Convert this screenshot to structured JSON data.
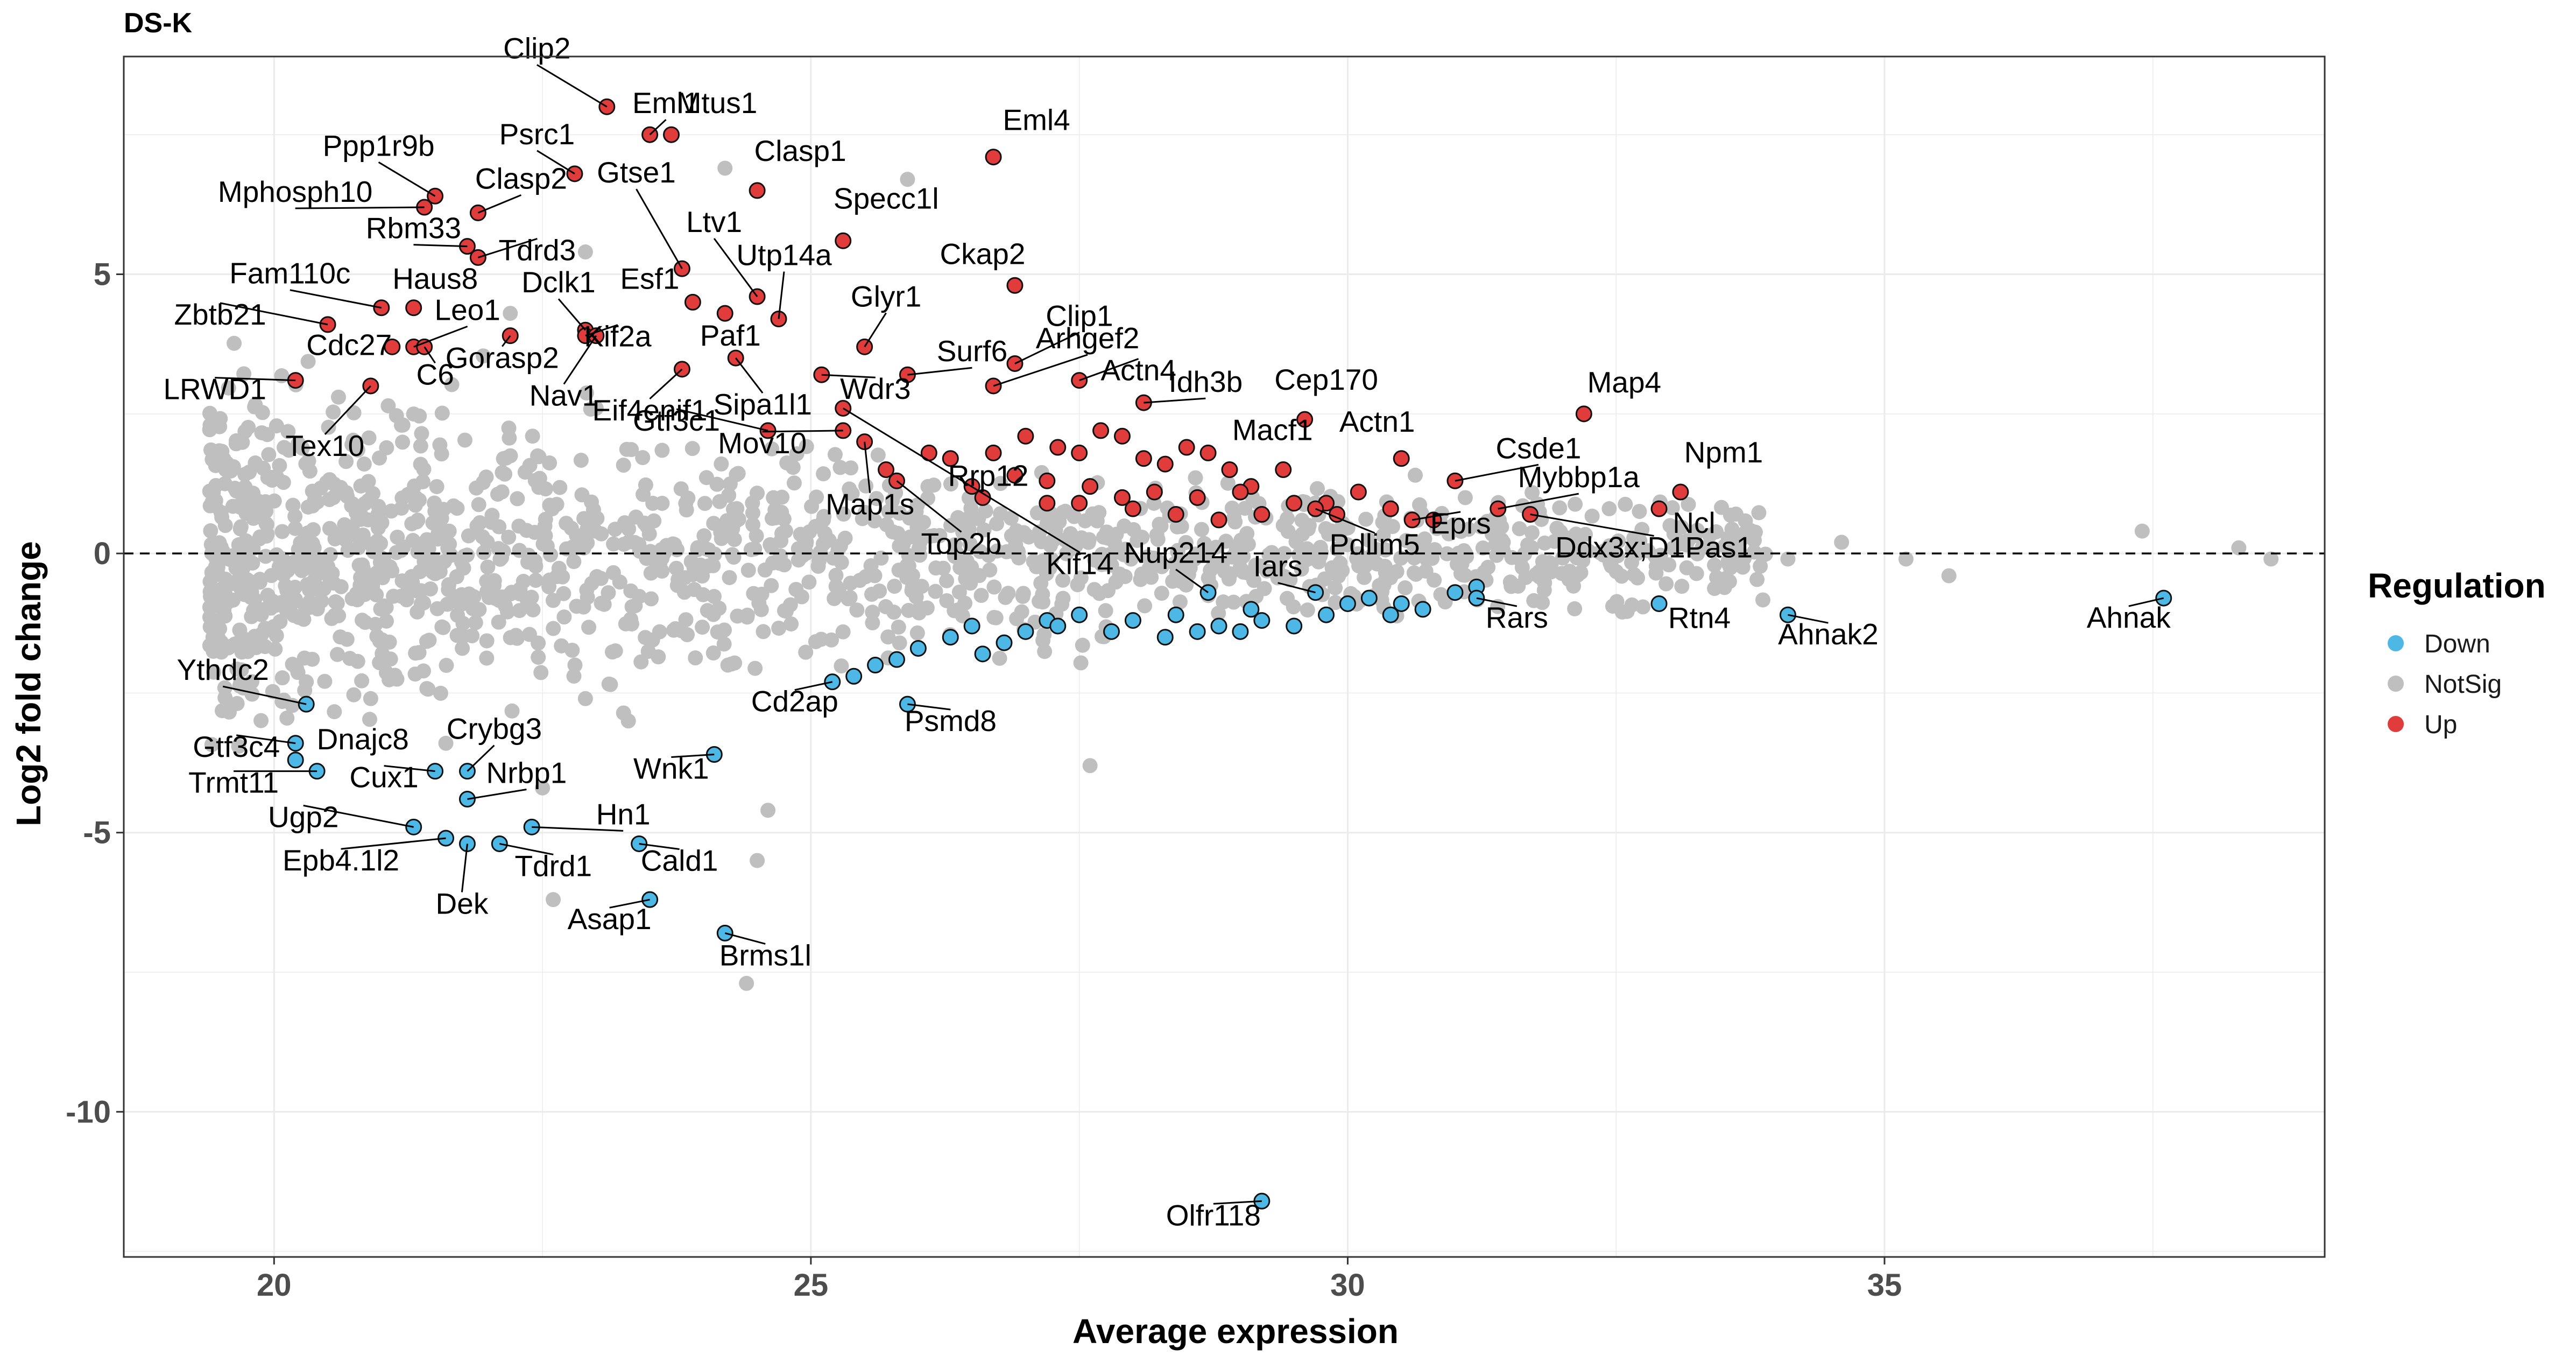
{
  "chart_data": {
    "type": "scatter",
    "title": "DS-K",
    "xlabel": "Average expression",
    "ylabel": "Log2 fold change",
    "xlim": [
      18.6,
      39.1
    ],
    "ylim": [
      -12.6,
      8.9
    ],
    "xticks": [
      20,
      25,
      30,
      35
    ],
    "yticks": [
      -10,
      -5,
      0,
      5
    ],
    "grid": true,
    "reference_line": {
      "y": 0,
      "style": "dashed"
    },
    "legend": {
      "title": "Regulation",
      "placement": "right",
      "entries": [
        {
          "label": "Down",
          "color": "#4db8e6"
        },
        {
          "label": "NotSig",
          "color": "#bfbfbf"
        },
        {
          "label": "Up",
          "color": "#e03c3c"
        }
      ]
    },
    "colors": {
      "Down": "#4db8e6",
      "NotSig": "#bfbfbf",
      "Up": "#e03c3c"
    },
    "labeled_points": [
      {
        "gene": "Clip2",
        "x": 23.1,
        "y": 8.0,
        "reg": "Up"
      },
      {
        "gene": "Eml1",
        "x": 23.5,
        "y": 7.5,
        "reg": "Up"
      },
      {
        "gene": "Mtus1",
        "x": 23.7,
        "y": 7.5,
        "reg": "Up"
      },
      {
        "gene": "Eml4",
        "x": 26.7,
        "y": 7.1,
        "reg": "Up"
      },
      {
        "gene": "Psrc1",
        "x": 22.8,
        "y": 6.8,
        "reg": "Up"
      },
      {
        "gene": "Ppp1r9b",
        "x": 21.5,
        "y": 6.4,
        "reg": "Up"
      },
      {
        "gene": "Clasp1",
        "x": 24.5,
        "y": 6.5,
        "reg": "Up"
      },
      {
        "gene": "Mphosph10",
        "x": 21.4,
        "y": 6.2,
        "reg": "Up"
      },
      {
        "gene": "Clasp2",
        "x": 21.9,
        "y": 6.1,
        "reg": "Up"
      },
      {
        "gene": "Gtse1",
        "x": 23.8,
        "y": 5.1,
        "reg": "Up"
      },
      {
        "gene": "Specc1l",
        "x": 25.3,
        "y": 5.6,
        "reg": "Up"
      },
      {
        "gene": "Rbm33",
        "x": 21.8,
        "y": 5.5,
        "reg": "Up"
      },
      {
        "gene": "Tdrd3",
        "x": 21.9,
        "y": 5.3,
        "reg": "Up"
      },
      {
        "gene": "Ltv1",
        "x": 24.5,
        "y": 4.6,
        "reg": "Up"
      },
      {
        "gene": "Ckap2",
        "x": 26.9,
        "y": 4.8,
        "reg": "Up"
      },
      {
        "gene": "Utp14a",
        "x": 24.7,
        "y": 4.2,
        "reg": "Up"
      },
      {
        "gene": "Fam110c",
        "x": 21.0,
        "y": 4.4,
        "reg": "Up"
      },
      {
        "gene": "Haus8",
        "x": 21.3,
        "y": 4.4,
        "reg": "Up"
      },
      {
        "gene": "Dclk1",
        "x": 22.9,
        "y": 4.0,
        "reg": "Up"
      },
      {
        "gene": "Esf1",
        "x": 23.9,
        "y": 4.5,
        "reg": "Up"
      },
      {
        "gene": "Glyr1",
        "x": 25.5,
        "y": 3.7,
        "reg": "Up"
      },
      {
        "gene": "Clip1",
        "x": 26.9,
        "y": 3.4,
        "reg": "Up"
      },
      {
        "gene": "Zbtb21",
        "x": 20.5,
        "y": 4.1,
        "reg": "Up"
      },
      {
        "gene": "Leo1",
        "x": 21.3,
        "y": 3.7,
        "reg": "Up"
      },
      {
        "gene": "Kif2a",
        "x": 22.9,
        "y": 3.9,
        "reg": "Up"
      },
      {
        "gene": "Paf1",
        "x": 24.2,
        "y": 4.3,
        "reg": "Up"
      },
      {
        "gene": "Surf6",
        "x": 25.9,
        "y": 3.2,
        "reg": "Up"
      },
      {
        "gene": "Arhgef2",
        "x": 26.7,
        "y": 3.0,
        "reg": "Up"
      },
      {
        "gene": "Cdc27",
        "x": 21.1,
        "y": 3.7,
        "reg": "Up"
      },
      {
        "gene": "Gorasp2",
        "x": 22.2,
        "y": 3.9,
        "reg": "Up"
      },
      {
        "gene": "Eif4enif1",
        "x": 23.8,
        "y": 3.3,
        "reg": "Up"
      },
      {
        "gene": "C6",
        "x": 21.4,
        "y": 3.7,
        "reg": "Up"
      },
      {
        "gene": "Sipa1l1",
        "x": 24.3,
        "y": 3.5,
        "reg": "Up"
      },
      {
        "gene": "Wdr3",
        "x": 25.1,
        "y": 3.2,
        "reg": "Up"
      },
      {
        "gene": "Actn4",
        "x": 27.5,
        "y": 3.1,
        "reg": "Up"
      },
      {
        "gene": "Idh3b",
        "x": 28.1,
        "y": 2.7,
        "reg": "Up"
      },
      {
        "gene": "Cep170",
        "x": 29.6,
        "y": 2.4,
        "reg": "Up"
      },
      {
        "gene": "Map4",
        "x": 32.2,
        "y": 2.5,
        "reg": "Up"
      },
      {
        "gene": "LRWD1",
        "x": 20.2,
        "y": 3.1,
        "reg": "Up"
      },
      {
        "gene": "Nav1",
        "x": 23.0,
        "y": 3.9,
        "reg": "Up"
      },
      {
        "gene": "Tex10",
        "x": 20.9,
        "y": 3.0,
        "reg": "Up"
      },
      {
        "gene": "Gtf3c1",
        "x": 24.6,
        "y": 2.2,
        "reg": "Up"
      },
      {
        "gene": "Mov10",
        "x": 25.3,
        "y": 2.2,
        "reg": "Up"
      },
      {
        "gene": "Macf1",
        "x": 29.4,
        "y": 1.5,
        "reg": "Up"
      },
      {
        "gene": "Actn1",
        "x": 30.5,
        "y": 1.7,
        "reg": "Up"
      },
      {
        "gene": "Csde1",
        "x": 31.0,
        "y": 1.3,
        "reg": "Up"
      },
      {
        "gene": "Map1s",
        "x": 25.5,
        "y": 2.0,
        "reg": "Up"
      },
      {
        "gene": "Rrp12",
        "x": 25.7,
        "y": 1.5,
        "reg": "Up"
      },
      {
        "gene": "Npm1",
        "x": 33.1,
        "y": 1.1,
        "reg": "Up"
      },
      {
        "gene": "Mybbp1a",
        "x": 31.4,
        "y": 0.8,
        "reg": "Up"
      },
      {
        "gene": "Kif14",
        "x": 25.3,
        "y": 2.6,
        "reg": "Up"
      },
      {
        "gene": "Ncl",
        "x": 32.9,
        "y": 0.8,
        "reg": "Up"
      },
      {
        "gene": "Top2b",
        "x": 25.8,
        "y": 1.3,
        "reg": "Up"
      },
      {
        "gene": "Pdlim5",
        "x": 29.7,
        "y": 0.8,
        "reg": "Up"
      },
      {
        "gene": "Eprs",
        "x": 30.6,
        "y": 0.6,
        "reg": "Up"
      },
      {
        "gene": "Nup214",
        "x": 28.7,
        "y": -0.7,
        "reg": "Down"
      },
      {
        "gene": "Ddx3x;D1Pas1",
        "x": 31.7,
        "y": 0.7,
        "reg": "Up"
      },
      {
        "gene": "Iars",
        "x": 29.7,
        "y": -0.7,
        "reg": "Down"
      },
      {
        "gene": "Rars",
        "x": 31.2,
        "y": -0.8,
        "reg": "Down"
      },
      {
        "gene": "Rtn4",
        "x": 32.9,
        "y": -0.9,
        "reg": "Down"
      },
      {
        "gene": "Ahnak2",
        "x": 34.1,
        "y": -1.1,
        "reg": "Down"
      },
      {
        "gene": "Ahnak",
        "x": 37.6,
        "y": -0.8,
        "reg": "Down"
      },
      {
        "gene": "Ythdc2",
        "x": 20.3,
        "y": -2.7,
        "reg": "Down"
      },
      {
        "gene": "Cd2ap",
        "x": 25.2,
        "y": -2.3,
        "reg": "Down"
      },
      {
        "gene": "Psmd8",
        "x": 25.9,
        "y": -2.7,
        "reg": "Down"
      },
      {
        "gene": "Gtf3c4",
        "x": 20.2,
        "y": -3.4,
        "reg": "Down"
      },
      {
        "gene": "Dnajc8",
        "x": 20.2,
        "y": -3.7,
        "reg": "Down"
      },
      {
        "gene": "Crybg3",
        "x": 21.8,
        "y": -3.9,
        "reg": "Down"
      },
      {
        "gene": "Trmt11",
        "x": 20.4,
        "y": -3.9,
        "reg": "Down"
      },
      {
        "gene": "Cux1",
        "x": 21.5,
        "y": -3.9,
        "reg": "Down"
      },
      {
        "gene": "Nrbp1",
        "x": 21.8,
        "y": -4.4,
        "reg": "Down"
      },
      {
        "gene": "Wnk1",
        "x": 24.1,
        "y": -3.6,
        "reg": "Down"
      },
      {
        "gene": "Ugp2",
        "x": 21.3,
        "y": -4.9,
        "reg": "Down"
      },
      {
        "gene": "Hn1",
        "x": 22.4,
        "y": -4.9,
        "reg": "Down"
      },
      {
        "gene": "Epb4.1l2",
        "x": 21.6,
        "y": -5.1,
        "reg": "Down"
      },
      {
        "gene": "Tdrd1",
        "x": 22.1,
        "y": -5.2,
        "reg": "Down"
      },
      {
        "gene": "Cald1",
        "x": 23.4,
        "y": -5.2,
        "reg": "Down"
      },
      {
        "gene": "Dek",
        "x": 21.8,
        "y": -5.2,
        "reg": "Down"
      },
      {
        "gene": "Asap1",
        "x": 23.5,
        "y": -6.2,
        "reg": "Down"
      },
      {
        "gene": "Brms1l",
        "x": 24.2,
        "y": -6.8,
        "reg": "Down"
      },
      {
        "gene": "Olfr118",
        "x": 29.2,
        "y": -11.6,
        "reg": "Down"
      }
    ],
    "other_up_points": [
      [
        26.1,
        1.8
      ],
      [
        26.3,
        1.7
      ],
      [
        26.7,
        1.8
      ],
      [
        27.0,
        2.1
      ],
      [
        27.3,
        1.9
      ],
      [
        27.5,
        1.8
      ],
      [
        27.7,
        2.2
      ],
      [
        27.9,
        2.1
      ],
      [
        28.1,
        1.7
      ],
      [
        28.3,
        1.6
      ],
      [
        28.5,
        1.9
      ],
      [
        28.7,
        1.8
      ],
      [
        28.9,
        1.5
      ],
      [
        29.1,
        1.2
      ],
      [
        26.9,
        1.4
      ],
      [
        27.2,
        1.3
      ],
      [
        27.6,
        1.2
      ],
      [
        27.9,
        1.0
      ],
      [
        28.2,
        1.1
      ],
      [
        28.6,
        1.0
      ],
      [
        29.0,
        1.1
      ],
      [
        29.5,
        0.9
      ],
      [
        29.8,
        0.9
      ],
      [
        30.1,
        1.1
      ],
      [
        30.4,
        0.8
      ],
      [
        27.5,
        0.9
      ],
      [
        28.0,
        0.8
      ],
      [
        28.4,
        0.7
      ],
      [
        28.8,
        0.6
      ],
      [
        26.5,
        1.2
      ],
      [
        26.6,
        1.0
      ],
      [
        27.2,
        0.9
      ],
      [
        29.2,
        0.7
      ],
      [
        29.9,
        0.7
      ],
      [
        30.8,
        0.6
      ]
    ],
    "other_down_points": [
      [
        25.4,
        -2.2
      ],
      [
        25.6,
        -2.0
      ],
      [
        25.8,
        -1.9
      ],
      [
        26.0,
        -1.7
      ],
      [
        26.3,
        -1.5
      ],
      [
        26.5,
        -1.3
      ],
      [
        26.8,
        -1.6
      ],
      [
        27.0,
        -1.4
      ],
      [
        27.2,
        -1.2
      ],
      [
        27.5,
        -1.1
      ],
      [
        27.8,
        -1.4
      ],
      [
        28.0,
        -1.2
      ],
      [
        28.3,
        -1.5
      ],
      [
        28.6,
        -1.4
      ],
      [
        28.8,
        -1.3
      ],
      [
        29.0,
        -1.4
      ],
      [
        29.2,
        -1.2
      ],
      [
        29.5,
        -1.3
      ],
      [
        29.8,
        -1.1
      ],
      [
        30.0,
        -0.9
      ],
      [
        30.2,
        -0.8
      ],
      [
        30.5,
        -0.9
      ],
      [
        30.7,
        -1.0
      ],
      [
        31.0,
        -0.7
      ],
      [
        31.2,
        -0.6
      ],
      [
        26.6,
        -1.8
      ],
      [
        27.3,
        -1.3
      ],
      [
        28.4,
        -1.1
      ],
      [
        29.1,
        -1.0
      ],
      [
        30.4,
        -1.1
      ]
    ]
  }
}
